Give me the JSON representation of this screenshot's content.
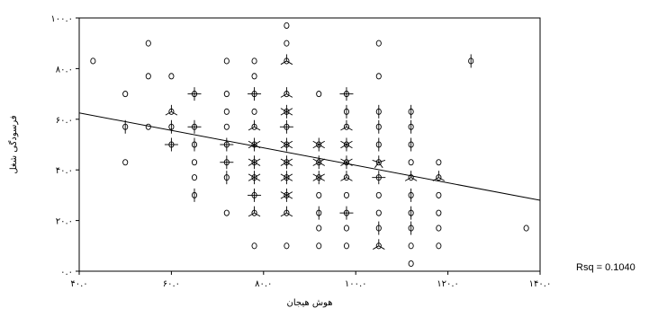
{
  "chart_data": {
    "type": "scatter",
    "title": "",
    "xlabel": "هوش هیجان",
    "ylabel": "فرسودگی شغل",
    "xlim": [
      40,
      140
    ],
    "ylim": [
      0,
      100
    ],
    "x_ticks": [
      40,
      60,
      80,
      100,
      120,
      140
    ],
    "x_tick_labels": [
      "۴۰.۰",
      "۶۰.۰",
      "۸۰.۰",
      "۱۰۰.۰",
      "۱۲۰.۰",
      "۱۴۰.۰"
    ],
    "y_ticks": [
      0,
      20,
      40,
      60,
      80,
      100
    ],
    "y_tick_labels": [
      "۰.۰",
      "۲۰.۰",
      "۴۰.۰",
      "۶۰.۰",
      "۸۰.۰",
      "۱۰۰.۰"
    ],
    "grid": false,
    "legend": "none",
    "fit_line": {
      "x": [
        40,
        140
      ],
      "y": [
        62.5,
        28
      ]
    },
    "rsq_label": "Rsq = 0.1040",
    "points": [
      {
        "x": 43,
        "y": 83,
        "n": 1
      },
      {
        "x": 50,
        "y": 70,
        "n": 1
      },
      {
        "x": 50,
        "y": 57,
        "n": 2
      },
      {
        "x": 50,
        "y": 43,
        "n": 1
      },
      {
        "x": 55,
        "y": 90,
        "n": 1
      },
      {
        "x": 55,
        "y": 77,
        "n": 1
      },
      {
        "x": 55,
        "y": 57,
        "n": 1
      },
      {
        "x": 60,
        "y": 77,
        "n": 1
      },
      {
        "x": 60,
        "y": 63,
        "n": 3
      },
      {
        "x": 60,
        "y": 57,
        "n": 2
      },
      {
        "x": 60,
        "y": 50,
        "n": 4
      },
      {
        "x": 65,
        "y": 70,
        "n": 4
      },
      {
        "x": 65,
        "y": 57,
        "n": 4
      },
      {
        "x": 65,
        "y": 50,
        "n": 2
      },
      {
        "x": 65,
        "y": 43,
        "n": 1
      },
      {
        "x": 65,
        "y": 37,
        "n": 1
      },
      {
        "x": 65,
        "y": 30,
        "n": 2
      },
      {
        "x": 72,
        "y": 83,
        "n": 1
      },
      {
        "x": 72,
        "y": 70,
        "n": 1
      },
      {
        "x": 72,
        "y": 63,
        "n": 1
      },
      {
        "x": 72,
        "y": 57,
        "n": 1
      },
      {
        "x": 72,
        "y": 50,
        "n": 4
      },
      {
        "x": 72,
        "y": 43,
        "n": 4
      },
      {
        "x": 72,
        "y": 37,
        "n": 2
      },
      {
        "x": 72,
        "y": 23,
        "n": 1
      },
      {
        "x": 78,
        "y": 83,
        "n": 1
      },
      {
        "x": 78,
        "y": 77,
        "n": 1
      },
      {
        "x": 78,
        "y": 70,
        "n": 4
      },
      {
        "x": 78,
        "y": 63,
        "n": 1
      },
      {
        "x": 78,
        "y": 57,
        "n": 3
      },
      {
        "x": 78,
        "y": 50,
        "n": 6
      },
      {
        "x": 78,
        "y": 43,
        "n": 6
      },
      {
        "x": 78,
        "y": 37,
        "n": 6
      },
      {
        "x": 78,
        "y": 30,
        "n": 4
      },
      {
        "x": 78,
        "y": 23,
        "n": 3
      },
      {
        "x": 78,
        "y": 10,
        "n": 1
      },
      {
        "x": 85,
        "y": 97,
        "n": 1
      },
      {
        "x": 85,
        "y": 90,
        "n": 1
      },
      {
        "x": 85,
        "y": 83,
        "n": 3
      },
      {
        "x": 85,
        "y": 70,
        "n": 3
      },
      {
        "x": 85,
        "y": 63,
        "n": 6
      },
      {
        "x": 85,
        "y": 57,
        "n": 4
      },
      {
        "x": 85,
        "y": 50,
        "n": 6
      },
      {
        "x": 85,
        "y": 43,
        "n": 6
      },
      {
        "x": 85,
        "y": 37,
        "n": 6
      },
      {
        "x": 85,
        "y": 30,
        "n": 6
      },
      {
        "x": 85,
        "y": 23,
        "n": 3
      },
      {
        "x": 85,
        "y": 10,
        "n": 1
      },
      {
        "x": 92,
        "y": 70,
        "n": 1
      },
      {
        "x": 92,
        "y": 50,
        "n": 6
      },
      {
        "x": 92,
        "y": 43,
        "n": 6
      },
      {
        "x": 92,
        "y": 37,
        "n": 6
      },
      {
        "x": 92,
        "y": 30,
        "n": 1
      },
      {
        "x": 92,
        "y": 23,
        "n": 2
      },
      {
        "x": 92,
        "y": 17,
        "n": 1
      },
      {
        "x": 92,
        "y": 10,
        "n": 1
      },
      {
        "x": 98,
        "y": 70,
        "n": 4
      },
      {
        "x": 98,
        "y": 63,
        "n": 2
      },
      {
        "x": 98,
        "y": 57,
        "n": 3
      },
      {
        "x": 98,
        "y": 50,
        "n": 6
      },
      {
        "x": 98,
        "y": 43,
        "n": 6
      },
      {
        "x": 98,
        "y": 37,
        "n": 3
      },
      {
        "x": 98,
        "y": 30,
        "n": 1
      },
      {
        "x": 98,
        "y": 23,
        "n": 4
      },
      {
        "x": 98,
        "y": 17,
        "n": 1
      },
      {
        "x": 98,
        "y": 10,
        "n": 1
      },
      {
        "x": 105,
        "y": 90,
        "n": 1
      },
      {
        "x": 105,
        "y": 77,
        "n": 1
      },
      {
        "x": 105,
        "y": 63,
        "n": 2
      },
      {
        "x": 105,
        "y": 57,
        "n": 2
      },
      {
        "x": 105,
        "y": 50,
        "n": 2
      },
      {
        "x": 105,
        "y": 43,
        "n": 5
      },
      {
        "x": 105,
        "y": 37,
        "n": 4
      },
      {
        "x": 105,
        "y": 30,
        "n": 1
      },
      {
        "x": 105,
        "y": 23,
        "n": 1
      },
      {
        "x": 105,
        "y": 17,
        "n": 2
      },
      {
        "x": 105,
        "y": 10,
        "n": 3
      },
      {
        "x": 112,
        "y": 63,
        "n": 2
      },
      {
        "x": 112,
        "y": 57,
        "n": 2
      },
      {
        "x": 112,
        "y": 50,
        "n": 2
      },
      {
        "x": 112,
        "y": 43,
        "n": 1
      },
      {
        "x": 112,
        "y": 37,
        "n": 3
      },
      {
        "x": 112,
        "y": 30,
        "n": 2
      },
      {
        "x": 112,
        "y": 23,
        "n": 2
      },
      {
        "x": 112,
        "y": 17,
        "n": 2
      },
      {
        "x": 112,
        "y": 10,
        "n": 1
      },
      {
        "x": 112,
        "y": 3,
        "n": 1
      },
      {
        "x": 118,
        "y": 43,
        "n": 1
      },
      {
        "x": 118,
        "y": 37,
        "n": 3
      },
      {
        "x": 118,
        "y": 30,
        "n": 1
      },
      {
        "x": 118,
        "y": 23,
        "n": 1
      },
      {
        "x": 118,
        "y": 17,
        "n": 1
      },
      {
        "x": 118,
        "y": 10,
        "n": 1
      },
      {
        "x": 125,
        "y": 83,
        "n": 2
      },
      {
        "x": 137,
        "y": 17,
        "n": 1
      }
    ]
  }
}
